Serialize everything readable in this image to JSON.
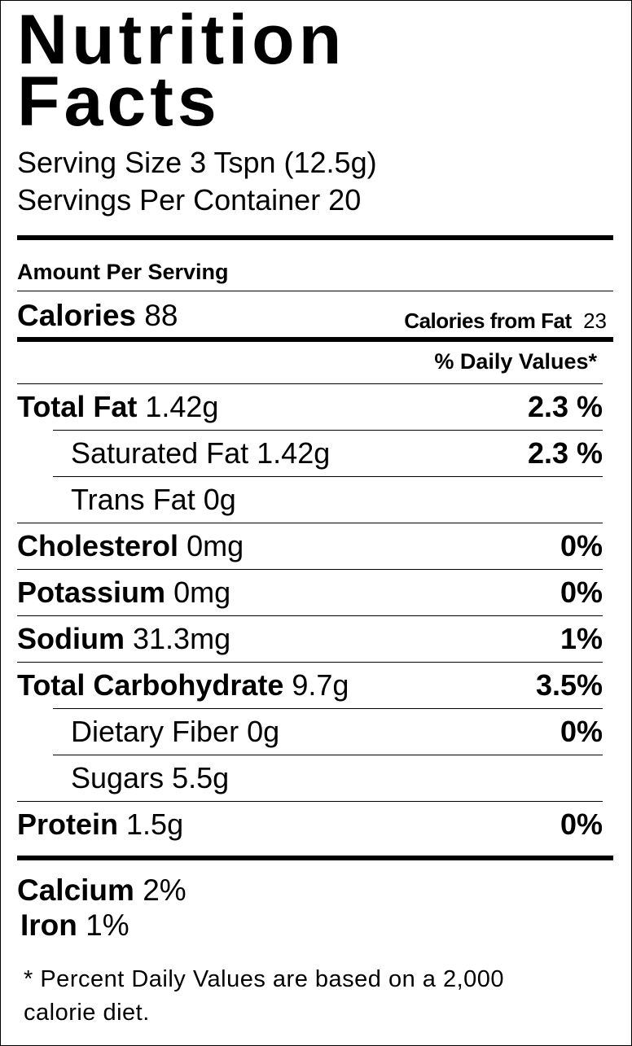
{
  "title": "Nutrition Facts",
  "serving_size": "Serving Size 3 Tspn  (12.5g)",
  "servings_per_container": "Servings Per Container 20",
  "amount_per_serving": "Amount Per Serving",
  "calories": {
    "label": "Calories",
    "value": "88",
    "from_fat_label": "Calories from Fat",
    "from_fat_value": "23"
  },
  "daily_values_header": "% Daily Values*",
  "nutrients": [
    {
      "name": "Total Fat",
      "amount": "1.42g",
      "dv": "2.3 %",
      "sub": [
        {
          "name": "Saturated Fat",
          "amount": "1.42g",
          "dv": "2.3 %"
        },
        {
          "name": "Trans Fat",
          "amount": "0g"
        }
      ]
    },
    {
      "name": "Cholesterol",
      "amount": "0mg",
      "dv": "0%"
    },
    {
      "name": "Potassium",
      "amount": "0mg",
      "dv": "0%"
    },
    {
      "name": "Sodium",
      "amount": "31.3mg",
      "dv": "1%"
    },
    {
      "name": "Total Carbohydrate",
      "amount": "9.7g",
      "dv": "3.5%",
      "sub": [
        {
          "name": "Dietary Fiber",
          "amount": "0g",
          "dv": "0%"
        },
        {
          "name": "Sugars",
          "amount": "5.5g"
        }
      ]
    },
    {
      "name": "Protein",
      "amount": "1.5g",
      "dv": "0%"
    }
  ],
  "vitamins": [
    {
      "name": "Calcium",
      "amount": "2%"
    },
    {
      "name": "Iron",
      "amount": "1%"
    }
  ],
  "footnote": "* Percent Daily Values are based on a 2,000 calorie diet."
}
